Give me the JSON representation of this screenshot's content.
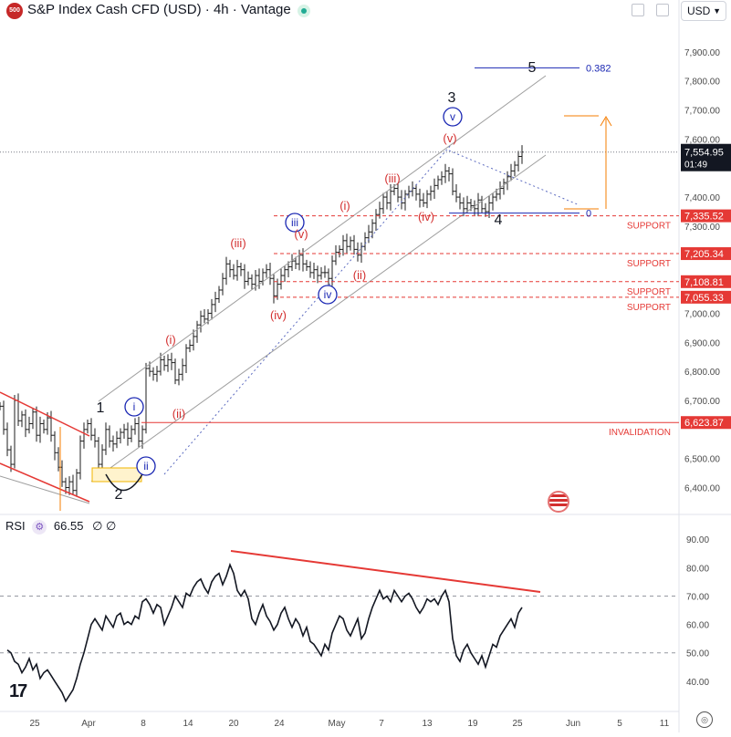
{
  "header": {
    "badge": "500",
    "title": "S&P Index Cash CFD (USD) · 4h · Vantage",
    "currency": "USD"
  },
  "rsi": {
    "label": "RSI",
    "value": "66.55",
    "extras": "∅ ∅"
  },
  "colors": {
    "wave_red": "#d32f2f",
    "wave_blue": "#1a27b3",
    "channel": "#9e9e9e",
    "support": "#e53935",
    "fib_blue": "#1a27b3",
    "target": "#f57c00",
    "price_bar": "#1e1e1e"
  },
  "chart_data": [
    {
      "type": "line",
      "name": "price-ohlc",
      "ylim": [
        6320,
        8000
      ],
      "price_ticks": [
        "7,900.00",
        "7,800.00",
        "7,700.00",
        "7,600.00",
        "7,400.00",
        "7,300.00",
        "7,000.00",
        "6,900.00",
        "6,800.00",
        "6,700.00",
        "6,500.00",
        "6,400.00"
      ],
      "x_ticks": [
        "25",
        "Apr",
        "8",
        "14",
        "20",
        "24",
        "May",
        "7",
        "13",
        "19",
        "25",
        "Jun",
        "5",
        "11"
      ],
      "last_price": "7,554.95",
      "countdown": "01:49",
      "levels": [
        {
          "price": "7,335.52",
          "value": 7335.52,
          "label": "SUPPORT"
        },
        {
          "price": "7,205.34",
          "value": 7205.34,
          "label": "SUPPORT"
        },
        {
          "price": "7,108.81",
          "value": 7108.81,
          "label": "SUPPORT"
        },
        {
          "price": "7,055.33",
          "value": 7055.33,
          "label": "SUPPORT"
        },
        {
          "price": "6,623.87",
          "value": 6623.87,
          "label": "INVALIDATION"
        }
      ],
      "fib": [
        {
          "label": "0.382",
          "value": 7845
        },
        {
          "label": "0",
          "value": 7345
        }
      ],
      "wave_labels": {
        "major": [
          "1",
          "2",
          "3",
          "4",
          "5"
        ],
        "blue": [
          "i",
          "ii",
          "iii",
          "iv",
          "v"
        ],
        "red": [
          "(i)",
          "(ii)",
          "(i)",
          "(ii)",
          "(iii)",
          "(iv)",
          "(v)",
          "(i)",
          "(ii)",
          "(iii)",
          "(iv)",
          "(v)"
        ]
      },
      "close_series": [
        [
          0,
          6680
        ],
        [
          4,
          6600
        ],
        [
          8,
          6530
        ],
        [
          12,
          6480
        ],
        [
          16,
          6700
        ],
        [
          20,
          6630
        ],
        [
          24,
          6650
        ],
        [
          28,
          6600
        ],
        [
          32,
          6620
        ],
        [
          36,
          6660
        ],
        [
          40,
          6580
        ],
        [
          44,
          6620
        ],
        [
          48,
          6600
        ],
        [
          52,
          6640
        ],
        [
          56,
          6580
        ],
        [
          60,
          6520
        ],
        [
          64,
          6470
        ],
        [
          68,
          6420
        ],
        [
          72,
          6400
        ],
        [
          76,
          6420
        ],
        [
          80,
          6390
        ],
        [
          84,
          6450
        ],
        [
          88,
          6560
        ],
        [
          92,
          6600
        ],
        [
          96,
          6620
        ],
        [
          100,
          6580
        ],
        [
          104,
          6560
        ],
        [
          108,
          6480
        ],
        [
          112,
          6530
        ],
        [
          116,
          6600
        ],
        [
          120,
          6560
        ],
        [
          124,
          6550
        ],
        [
          128,
          6570
        ],
        [
          132,
          6590
        ],
        [
          136,
          6600
        ],
        [
          140,
          6570
        ],
        [
          144,
          6600
        ],
        [
          148,
          6620
        ],
        [
          152,
          6560
        ],
        [
          156,
          6600
        ],
        [
          160,
          6810
        ],
        [
          164,
          6800
        ],
        [
          168,
          6790
        ],
        [
          172,
          6800
        ],
        [
          176,
          6840
        ],
        [
          180,
          6820
        ],
        [
          184,
          6840
        ],
        [
          188,
          6830
        ],
        [
          192,
          6770
        ],
        [
          196,
          6790
        ],
        [
          200,
          6820
        ],
        [
          204,
          6880
        ],
        [
          208,
          6890
        ],
        [
          212,
          6920
        ],
        [
          216,
          6960
        ],
        [
          220,
          6990
        ],
        [
          224,
          6980
        ],
        [
          228,
          7000
        ],
        [
          232,
          7030
        ],
        [
          236,
          7050
        ],
        [
          240,
          7080
        ],
        [
          244,
          7120
        ],
        [
          248,
          7170
        ],
        [
          252,
          7150
        ],
        [
          256,
          7130
        ],
        [
          260,
          7160
        ],
        [
          264,
          7150
        ],
        [
          268,
          7110
        ],
        [
          272,
          7120
        ],
        [
          276,
          7100
        ],
        [
          280,
          7130
        ],
        [
          284,
          7110
        ],
        [
          288,
          7140
        ],
        [
          292,
          7150
        ],
        [
          296,
          7120
        ],
        [
          300,
          7060
        ],
        [
          304,
          7100
        ],
        [
          308,
          7130
        ],
        [
          312,
          7150
        ],
        [
          316,
          7160
        ],
        [
          320,
          7180
        ],
        [
          324,
          7170
        ],
        [
          328,
          7200
        ],
        [
          332,
          7170
        ],
        [
          336,
          7160
        ],
        [
          340,
          7140
        ],
        [
          344,
          7150
        ],
        [
          348,
          7130
        ],
        [
          352,
          7140
        ],
        [
          356,
          7140
        ],
        [
          360,
          7120
        ],
        [
          364,
          7180
        ],
        [
          368,
          7210
        ],
        [
          372,
          7220
        ],
        [
          376,
          7250
        ],
        [
          380,
          7230
        ],
        [
          384,
          7250
        ],
        [
          388,
          7220
        ],
        [
          392,
          7200
        ],
        [
          396,
          7230
        ],
        [
          400,
          7260
        ],
        [
          404,
          7280
        ],
        [
          408,
          7310
        ],
        [
          412,
          7340
        ],
        [
          416,
          7360
        ],
        [
          420,
          7400
        ],
        [
          424,
          7380
        ],
        [
          428,
          7420
        ],
        [
          432,
          7430
        ],
        [
          436,
          7400
        ],
        [
          440,
          7380
        ],
        [
          444,
          7410
        ],
        [
          448,
          7420
        ],
        [
          452,
          7430
        ],
        [
          456,
          7410
        ],
        [
          460,
          7390
        ],
        [
          464,
          7380
        ],
        [
          468,
          7410
        ],
        [
          472,
          7420
        ],
        [
          476,
          7440
        ],
        [
          480,
          7460
        ],
        [
          484,
          7470
        ],
        [
          488,
          7490
        ],
        [
          492,
          7480
        ],
        [
          496,
          7420
        ],
        [
          500,
          7400
        ],
        [
          504,
          7380
        ],
        [
          508,
          7360
        ],
        [
          512,
          7380
        ],
        [
          516,
          7370
        ],
        [
          520,
          7360
        ],
        [
          524,
          7390
        ],
        [
          528,
          7360
        ],
        [
          532,
          7350
        ],
        [
          536,
          7380
        ],
        [
          540,
          7400
        ],
        [
          544,
          7410
        ],
        [
          548,
          7430
        ],
        [
          552,
          7450
        ],
        [
          556,
          7470
        ],
        [
          560,
          7490
        ],
        [
          564,
          7510
        ],
        [
          568,
          7540
        ],
        [
          572,
          7555
        ]
      ]
    },
    {
      "type": "line",
      "name": "rsi",
      "ylim": [
        30,
        92
      ],
      "ticks": [
        "90.00",
        "80.00",
        "70.00",
        "60.00",
        "50.00",
        "40.00"
      ],
      "levels": [
        70,
        50
      ],
      "series": [
        [
          8,
          51
        ],
        [
          12,
          50
        ],
        [
          16,
          47
        ],
        [
          20,
          46
        ],
        [
          24,
          43
        ],
        [
          28,
          45
        ],
        [
          32,
          48
        ],
        [
          36,
          44
        ],
        [
          40,
          46
        ],
        [
          44,
          41
        ],
        [
          48,
          43
        ],
        [
          52,
          44
        ],
        [
          56,
          42
        ],
        [
          60,
          40
        ],
        [
          64,
          38
        ],
        [
          68,
          36
        ],
        [
          72,
          33
        ],
        [
          76,
          35
        ],
        [
          80,
          37
        ],
        [
          84,
          41
        ],
        [
          88,
          46
        ],
        [
          92,
          50
        ],
        [
          96,
          55
        ],
        [
          100,
          60
        ],
        [
          104,
          62
        ],
        [
          108,
          60
        ],
        [
          112,
          58
        ],
        [
          116,
          63
        ],
        [
          120,
          61
        ],
        [
          124,
          59
        ],
        [
          128,
          63
        ],
        [
          132,
          64
        ],
        [
          136,
          60
        ],
        [
          140,
          61
        ],
        [
          144,
          60
        ],
        [
          148,
          63
        ],
        [
          152,
          62
        ],
        [
          156,
          68
        ],
        [
          160,
          69
        ],
        [
          164,
          67
        ],
        [
          168,
          64
        ],
        [
          172,
          67
        ],
        [
          176,
          66
        ],
        [
          180,
          60
        ],
        [
          184,
          63
        ],
        [
          188,
          66
        ],
        [
          192,
          70
        ],
        [
          196,
          68
        ],
        [
          200,
          66
        ],
        [
          204,
          71
        ],
        [
          208,
          70
        ],
        [
          212,
          73
        ],
        [
          216,
          75
        ],
        [
          220,
          76
        ],
        [
          224,
          73
        ],
        [
          228,
          71
        ],
        [
          232,
          75
        ],
        [
          236,
          77
        ],
        [
          240,
          78
        ],
        [
          244,
          74
        ],
        [
          248,
          77
        ],
        [
          252,
          81
        ],
        [
          256,
          78
        ],
        [
          260,
          72
        ],
        [
          264,
          70
        ],
        [
          268,
          72
        ],
        [
          272,
          69
        ],
        [
          276,
          62
        ],
        [
          280,
          60
        ],
        [
          284,
          64
        ],
        [
          288,
          67
        ],
        [
          292,
          63
        ],
        [
          296,
          61
        ],
        [
          300,
          58
        ],
        [
          304,
          60
        ],
        [
          308,
          64
        ],
        [
          312,
          66
        ],
        [
          316,
          62
        ],
        [
          320,
          59
        ],
        [
          324,
          62
        ],
        [
          328,
          60
        ],
        [
          332,
          56
        ],
        [
          336,
          59
        ],
        [
          340,
          54
        ],
        [
          344,
          53
        ],
        [
          348,
          51
        ],
        [
          352,
          49
        ],
        [
          356,
          53
        ],
        [
          360,
          51
        ],
        [
          364,
          57
        ],
        [
          368,
          60
        ],
        [
          372,
          63
        ],
        [
          376,
          62
        ],
        [
          380,
          58
        ],
        [
          384,
          56
        ],
        [
          388,
          59
        ],
        [
          392,
          62
        ],
        [
          396,
          55
        ],
        [
          400,
          57
        ],
        [
          404,
          62
        ],
        [
          408,
          66
        ],
        [
          412,
          69
        ],
        [
          416,
          72
        ],
        [
          420,
          69
        ],
        [
          424,
          70
        ],
        [
          428,
          68
        ],
        [
          432,
          72
        ],
        [
          436,
          70
        ],
        [
          440,
          68
        ],
        [
          444,
          70
        ],
        [
          448,
          71
        ],
        [
          452,
          69
        ],
        [
          456,
          66
        ],
        [
          460,
          64
        ],
        [
          464,
          66
        ],
        [
          468,
          69
        ],
        [
          472,
          68
        ],
        [
          476,
          69
        ],
        [
          480,
          67
        ],
        [
          484,
          70
        ],
        [
          488,
          72
        ],
        [
          492,
          68
        ],
        [
          496,
          55
        ],
        [
          500,
          49
        ],
        [
          504,
          47
        ],
        [
          508,
          51
        ],
        [
          512,
          53
        ],
        [
          516,
          50
        ],
        [
          520,
          48
        ],
        [
          524,
          46
        ],
        [
          528,
          49
        ],
        [
          532,
          45
        ],
        [
          536,
          49
        ],
        [
          540,
          53
        ],
        [
          544,
          52
        ],
        [
          548,
          56
        ],
        [
          552,
          58
        ],
        [
          556,
          60
        ],
        [
          560,
          62
        ],
        [
          564,
          59
        ],
        [
          568,
          64
        ],
        [
          572,
          66
        ]
      ]
    }
  ]
}
